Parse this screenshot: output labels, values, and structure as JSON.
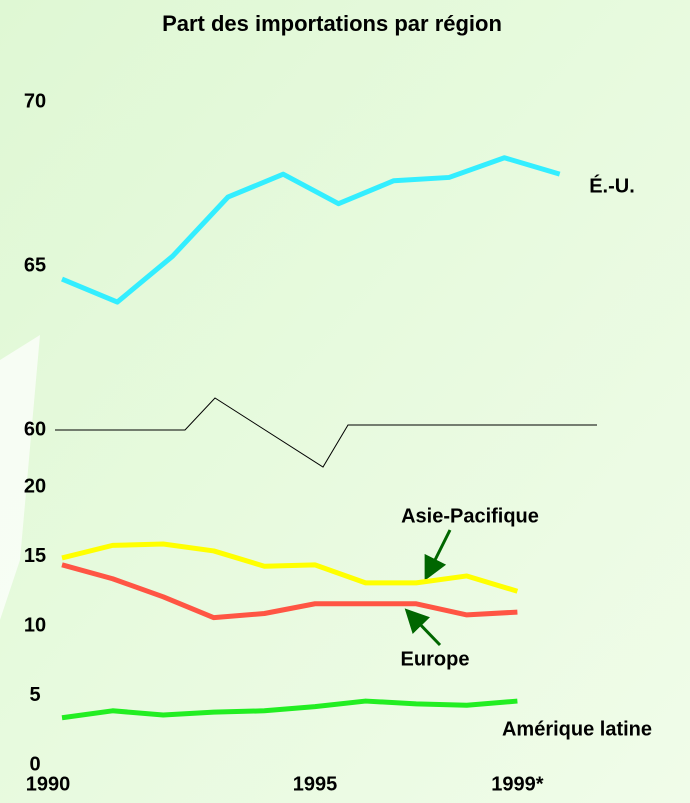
{
  "chart_data": {
    "type": "line",
    "title": "Part des importations par région",
    "categories": [
      "1990",
      null,
      null,
      null,
      null,
      "1995",
      null,
      null,
      null,
      "1999*"
    ],
    "panels": [
      {
        "ylim": [
          60,
          70
        ],
        "yticks": [
          60,
          65,
          70
        ],
        "series": [
          {
            "name": "É.-U.",
            "color": "#33eeff",
            "values": [
              64.6,
              63.9,
              65.3,
              67.1,
              67.8,
              66.9,
              67.6,
              67.7,
              68.3,
              67.8
            ]
          }
        ]
      },
      {
        "ylim": [
          0,
          20
        ],
        "yticks": [
          0,
          5,
          10,
          15,
          20
        ],
        "series": [
          {
            "name": "Asie-Pacifique",
            "color": "#ffff00",
            "values": [
              14.9,
              15.8,
              15.9,
              15.4,
              14.3,
              14.4,
              13.1,
              13.1,
              13.6,
              12.5
            ]
          },
          {
            "name": "Europe",
            "color": "#ff5544",
            "values": [
              14.4,
              13.4,
              12.1,
              10.6,
              10.9,
              11.6,
              11.6,
              11.6,
              10.8,
              11.0
            ]
          },
          {
            "name": "Amérique latine",
            "color": "#22ee22",
            "values": [
              3.4,
              3.9,
              3.6,
              3.8,
              3.9,
              4.2,
              4.6,
              4.4,
              4.3,
              4.6
            ]
          }
        ]
      }
    ]
  }
}
